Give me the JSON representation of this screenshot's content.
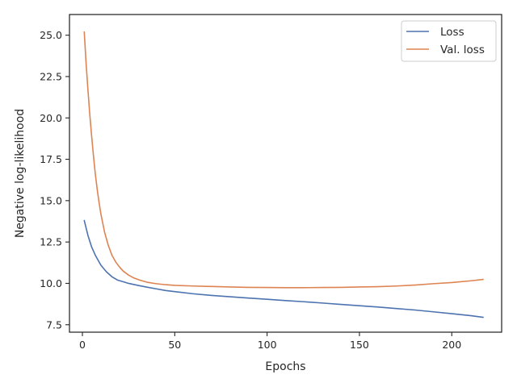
{
  "chart_data": {
    "type": "line",
    "title": "",
    "xlabel": "Epochs",
    "ylabel": "Negative log-likelihood",
    "xlim": [
      -7,
      227
    ],
    "ylim": [
      7.05,
      26.25
    ],
    "xticks": [
      0,
      50,
      100,
      150,
      200
    ],
    "yticks": [
      7.5,
      10.0,
      12.5,
      15.0,
      17.5,
      20.0,
      22.5,
      25.0
    ],
    "xtick_labels": [
      "0",
      "50",
      "100",
      "150",
      "200"
    ],
    "ytick_labels": [
      "7.5",
      "10.0",
      "12.5",
      "15.0",
      "17.5",
      "20.0",
      "22.5",
      "25.0"
    ],
    "grid": false,
    "legend_position": "top-right",
    "series": [
      {
        "name": "Loss",
        "color": "#4c72b0",
        "x": [
          1,
          3,
          5,
          7,
          10,
          13,
          16,
          19,
          22,
          25,
          30,
          35,
          40,
          45,
          50,
          60,
          70,
          80,
          90,
          100,
          110,
          120,
          130,
          140,
          150,
          160,
          170,
          180,
          190,
          200,
          210,
          217
        ],
        "y": [
          13.8,
          12.9,
          12.2,
          11.7,
          11.1,
          10.7,
          10.4,
          10.2,
          10.1,
          10.0,
          9.88,
          9.77,
          9.67,
          9.57,
          9.5,
          9.37,
          9.27,
          9.19,
          9.11,
          9.04,
          8.96,
          8.89,
          8.81,
          8.73,
          8.65,
          8.57,
          8.48,
          8.39,
          8.28,
          8.17,
          8.05,
          7.95
        ]
      },
      {
        "name": "Val. loss",
        "color": "#dd8452",
        "x": [
          1,
          2,
          3,
          4,
          5,
          6,
          7,
          8,
          9,
          10,
          12,
          14,
          16,
          18,
          20,
          22,
          25,
          28,
          31,
          35,
          40,
          45,
          50,
          60,
          70,
          80,
          90,
          100,
          110,
          120,
          130,
          140,
          150,
          160,
          170,
          180,
          190,
          200,
          210,
          217
        ],
        "y": [
          25.2,
          23.3,
          21.7,
          20.2,
          18.9,
          17.7,
          16.6,
          15.7,
          14.9,
          14.2,
          13.1,
          12.3,
          11.7,
          11.3,
          11.0,
          10.75,
          10.5,
          10.32,
          10.2,
          10.07,
          9.98,
          9.92,
          9.88,
          9.84,
          9.81,
          9.78,
          9.76,
          9.75,
          9.74,
          9.74,
          9.75,
          9.76,
          9.78,
          9.8,
          9.84,
          9.9,
          9.98,
          10.05,
          10.15,
          10.24
        ]
      }
    ]
  }
}
